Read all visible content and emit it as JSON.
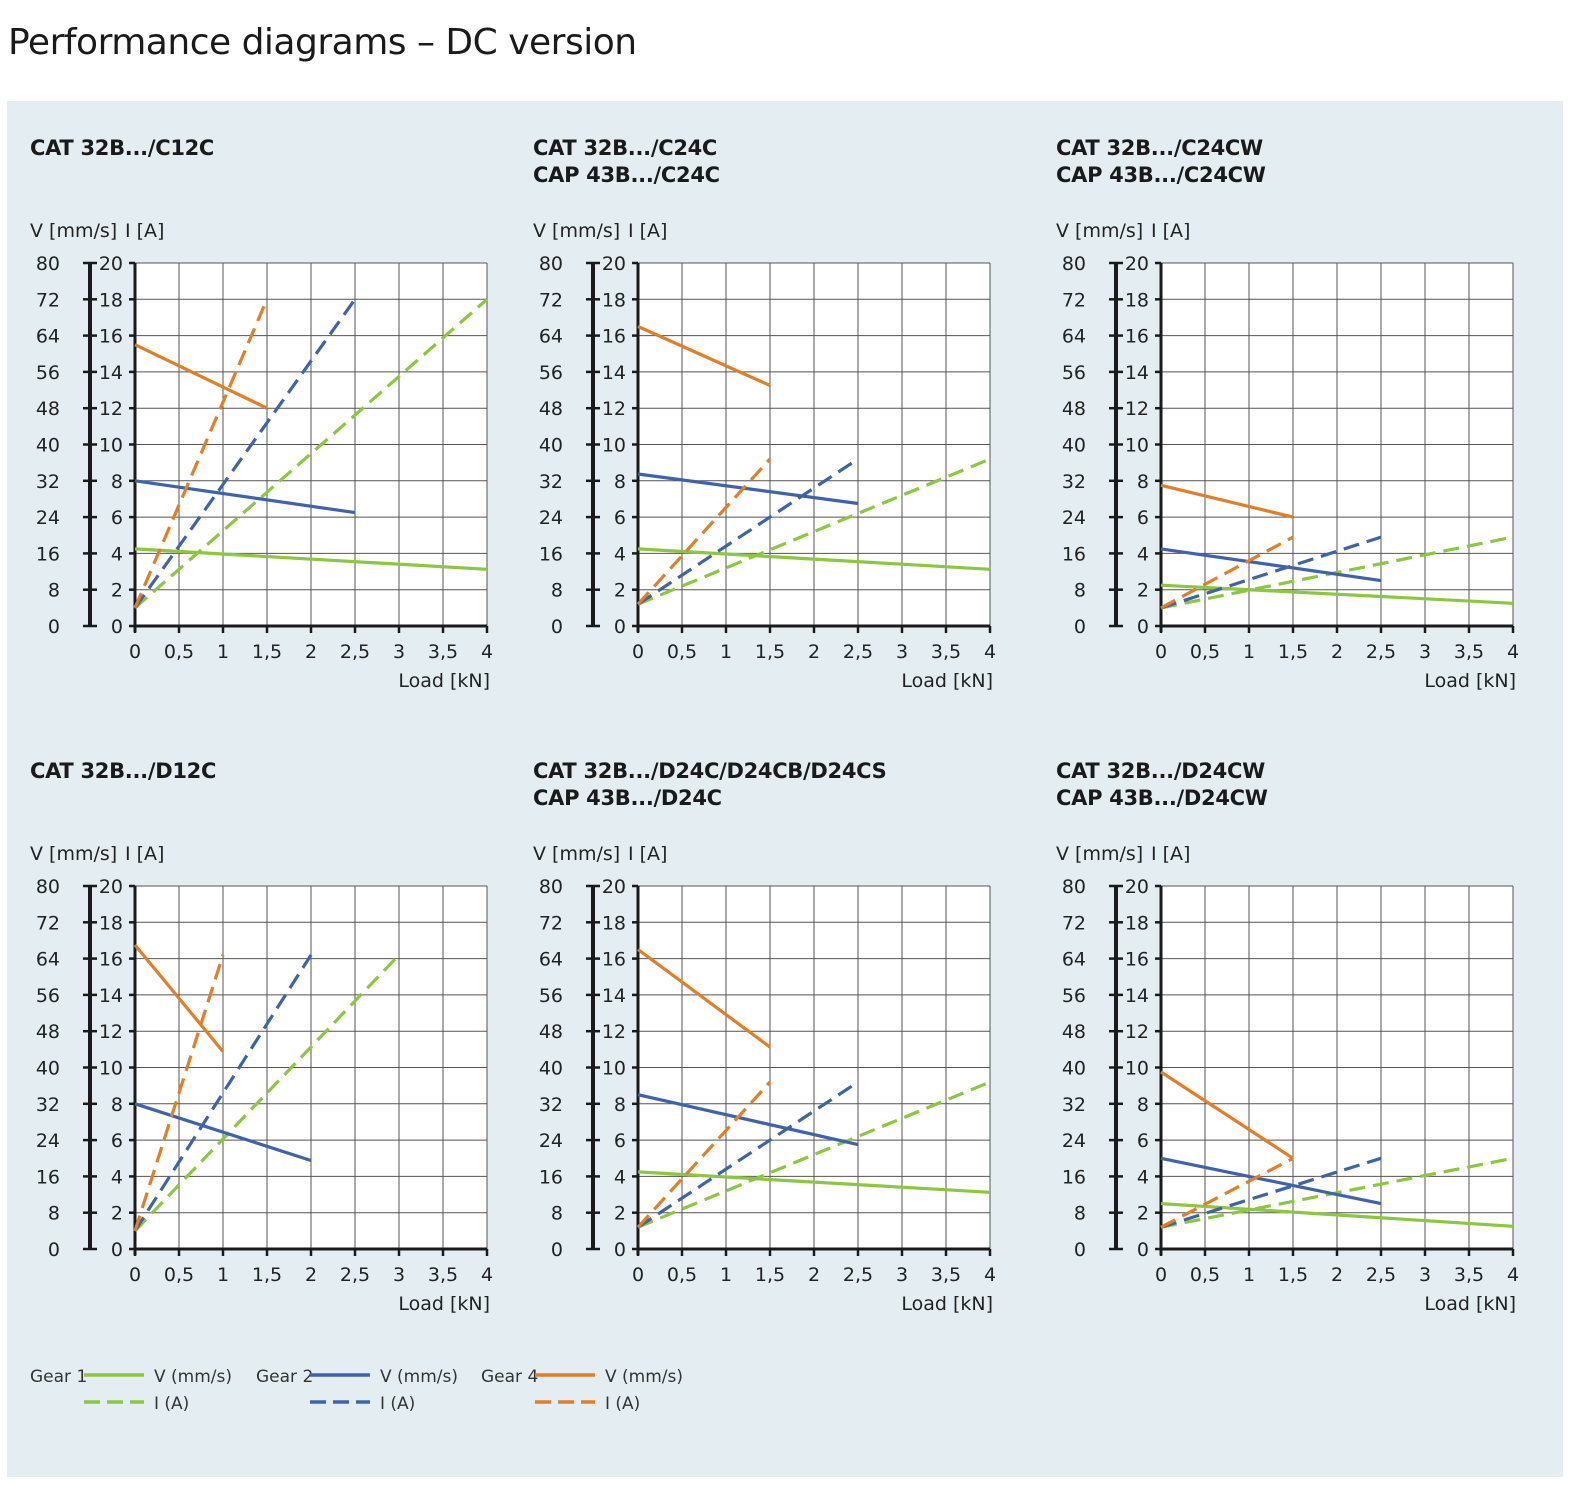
{
  "page": {
    "title": "Performance diagrams – DC version"
  },
  "colors": {
    "gear1": "#8dc63f",
    "gear2": "#3e63a8",
    "gear4": "#e07f26",
    "panel_bg": "#e4eef2",
    "grid": "#555555",
    "axis": "#1a1a1a"
  },
  "legend": {
    "items": [
      {
        "gear_label": "Gear 1",
        "color_key": "gear1",
        "v_label": "V (mm/s)",
        "i_label": "I (A)"
      },
      {
        "gear_label": "Gear 2",
        "color_key": "gear2",
        "v_label": "V (mm/s)",
        "i_label": "I (A)"
      },
      {
        "gear_label": "Gear 4",
        "color_key": "gear4",
        "v_label": "V (mm/s)",
        "i_label": "I (A)"
      }
    ]
  },
  "chart_data": [
    {
      "type": "line",
      "title": [
        "CAT 32B.../C12C"
      ],
      "y_left_label": "V [mm/s]",
      "y_right_label": "I [A]",
      "xlabel": "Load [kN]",
      "x_ticks": [
        "0",
        "0,5",
        "1",
        "1,5",
        "2",
        "2,5",
        "3",
        "3,5",
        "4"
      ],
      "y_left_ticks": [
        "0",
        "8",
        "16",
        "24",
        "32",
        "40",
        "48",
        "56",
        "64",
        "72",
        "80"
      ],
      "y_right_ticks": [
        "0",
        "2",
        "4",
        "6",
        "8",
        "10",
        "12",
        "14",
        "16",
        "18",
        "20"
      ],
      "xlim": [
        0,
        4
      ],
      "ylim_v": [
        0,
        80
      ],
      "ylim_i": [
        0,
        20
      ],
      "grid": true,
      "series": [
        {
          "gear": "Gear 1",
          "color_key": "gear1",
          "dashed": false,
          "axis": "v",
          "points": [
            [
              0,
              17
            ],
            [
              4,
              12.5
            ]
          ]
        },
        {
          "gear": "Gear 1",
          "color_key": "gear1",
          "dashed": true,
          "axis": "i",
          "points": [
            [
              0,
              1
            ],
            [
              4,
              18
            ]
          ]
        },
        {
          "gear": "Gear 2",
          "color_key": "gear2",
          "dashed": false,
          "axis": "v",
          "points": [
            [
              0,
              32
            ],
            [
              2.5,
              25
            ]
          ]
        },
        {
          "gear": "Gear 2",
          "color_key": "gear2",
          "dashed": true,
          "axis": "i",
          "points": [
            [
              0,
              1
            ],
            [
              2.5,
              18
            ]
          ]
        },
        {
          "gear": "Gear 4",
          "color_key": "gear4",
          "dashed": false,
          "axis": "v",
          "points": [
            [
              0,
              62
            ],
            [
              1.5,
              48
            ]
          ]
        },
        {
          "gear": "Gear 4",
          "color_key": "gear4",
          "dashed": true,
          "axis": "i",
          "points": [
            [
              0,
              1
            ],
            [
              1.5,
              18
            ]
          ]
        }
      ]
    },
    {
      "type": "line",
      "title": [
        "CAT 32B.../C24C",
        "CAP 43B.../C24C"
      ],
      "y_left_label": "V [mm/s]",
      "y_right_label": "I [A]",
      "xlabel": "Load [kN]",
      "x_ticks": [
        "0",
        "0,5",
        "1",
        "1,5",
        "2",
        "2,5",
        "3",
        "3,5",
        "4"
      ],
      "y_left_ticks": [
        "0",
        "8",
        "16",
        "24",
        "32",
        "40",
        "48",
        "56",
        "64",
        "72",
        "80"
      ],
      "y_right_ticks": [
        "0",
        "2",
        "4",
        "6",
        "8",
        "10",
        "12",
        "14",
        "16",
        "18",
        "20"
      ],
      "xlim": [
        0,
        4
      ],
      "ylim_v": [
        0,
        80
      ],
      "ylim_i": [
        0,
        20
      ],
      "grid": true,
      "series": [
        {
          "gear": "Gear 1",
          "color_key": "gear1",
          "dashed": false,
          "axis": "v",
          "points": [
            [
              0,
              17
            ],
            [
              4,
              12.5
            ]
          ]
        },
        {
          "gear": "Gear 1",
          "color_key": "gear1",
          "dashed": true,
          "axis": "i",
          "points": [
            [
              0,
              1.2
            ],
            [
              4,
              9.2
            ]
          ]
        },
        {
          "gear": "Gear 2",
          "color_key": "gear2",
          "dashed": false,
          "axis": "v",
          "points": [
            [
              0,
              33.5
            ],
            [
              2.5,
              27
            ]
          ]
        },
        {
          "gear": "Gear 2",
          "color_key": "gear2",
          "dashed": true,
          "axis": "i",
          "points": [
            [
              0,
              1.2
            ],
            [
              2.5,
              9.2
            ]
          ]
        },
        {
          "gear": "Gear 4",
          "color_key": "gear4",
          "dashed": false,
          "axis": "v",
          "points": [
            [
              0,
              66
            ],
            [
              1.5,
              53
            ]
          ]
        },
        {
          "gear": "Gear 4",
          "color_key": "gear4",
          "dashed": true,
          "axis": "i",
          "points": [
            [
              0,
              1.2
            ],
            [
              1.5,
              9.2
            ]
          ]
        }
      ]
    },
    {
      "type": "line",
      "title": [
        "CAT 32B.../C24CW",
        "CAP 43B.../C24CW"
      ],
      "y_left_label": "V [mm/s]",
      "y_right_label": "I [A]",
      "xlabel": "Load [kN]",
      "x_ticks": [
        "0",
        "0,5",
        "1",
        "1,5",
        "2",
        "2,5",
        "3",
        "3,5",
        "4"
      ],
      "y_left_ticks": [
        "0",
        "8",
        "16",
        "24",
        "32",
        "40",
        "48",
        "56",
        "64",
        "72",
        "80"
      ],
      "y_right_ticks": [
        "0",
        "2",
        "4",
        "6",
        "8",
        "10",
        "12",
        "14",
        "16",
        "18",
        "20"
      ],
      "xlim": [
        0,
        4
      ],
      "ylim_v": [
        0,
        80
      ],
      "ylim_i": [
        0,
        20
      ],
      "grid": true,
      "series": [
        {
          "gear": "Gear 1",
          "color_key": "gear1",
          "dashed": false,
          "axis": "v",
          "points": [
            [
              0,
              9
            ],
            [
              4,
              5
            ]
          ]
        },
        {
          "gear": "Gear 1",
          "color_key": "gear1",
          "dashed": true,
          "axis": "i",
          "points": [
            [
              0,
              1
            ],
            [
              4,
              4.9
            ]
          ]
        },
        {
          "gear": "Gear 2",
          "color_key": "gear2",
          "dashed": false,
          "axis": "v",
          "points": [
            [
              0,
              17
            ],
            [
              2.5,
              10
            ]
          ]
        },
        {
          "gear": "Gear 2",
          "color_key": "gear2",
          "dashed": true,
          "axis": "i",
          "points": [
            [
              0,
              1
            ],
            [
              2.5,
              4.9
            ]
          ]
        },
        {
          "gear": "Gear 4",
          "color_key": "gear4",
          "dashed": false,
          "axis": "v",
          "points": [
            [
              0,
              31
            ],
            [
              1.5,
              24
            ]
          ]
        },
        {
          "gear": "Gear 4",
          "color_key": "gear4",
          "dashed": true,
          "axis": "i",
          "points": [
            [
              0,
              1
            ],
            [
              1.5,
              4.9
            ]
          ]
        }
      ]
    },
    {
      "type": "line",
      "title": [
        "CAT 32B.../D12C"
      ],
      "y_left_label": "V [mm/s]",
      "y_right_label": "I [A]",
      "xlabel": "Load [kN]",
      "x_ticks": [
        "0",
        "0,5",
        "1",
        "1,5",
        "2",
        "2,5",
        "3",
        "3,5",
        "4"
      ],
      "y_left_ticks": [
        "0",
        "8",
        "16",
        "24",
        "32",
        "40",
        "48",
        "56",
        "64",
        "72",
        "80"
      ],
      "y_right_ticks": [
        "0",
        "2",
        "4",
        "6",
        "8",
        "10",
        "12",
        "14",
        "16",
        "18",
        "20"
      ],
      "xlim": [
        0,
        4
      ],
      "ylim_v": [
        0,
        80
      ],
      "ylim_i": [
        0,
        20
      ],
      "grid": true,
      "series": [
        {
          "gear": "Gear 1",
          "color_key": "gear1",
          "dashed": true,
          "axis": "i",
          "points": [
            [
              0,
              1
            ],
            [
              3,
              16.2
            ]
          ]
        },
        {
          "gear": "Gear 2",
          "color_key": "gear2",
          "dashed": false,
          "axis": "v",
          "points": [
            [
              0,
              32
            ],
            [
              2,
              19.5
            ]
          ]
        },
        {
          "gear": "Gear 2",
          "color_key": "gear2",
          "dashed": true,
          "axis": "i",
          "points": [
            [
              0,
              1
            ],
            [
              2,
              16.2
            ]
          ]
        },
        {
          "gear": "Gear 4",
          "color_key": "gear4",
          "dashed": false,
          "axis": "v",
          "points": [
            [
              0,
              67
            ],
            [
              1,
              43.5
            ]
          ]
        },
        {
          "gear": "Gear 4",
          "color_key": "gear4",
          "dashed": true,
          "axis": "i",
          "points": [
            [
              0,
              1
            ],
            [
              1,
              16.2
            ]
          ]
        }
      ]
    },
    {
      "type": "line",
      "title": [
        "CAT 32B.../D24C/D24CB/D24CS",
        "CAP 43B.../D24C"
      ],
      "y_left_label": "V [mm/s]",
      "y_right_label": "I [A]",
      "xlabel": "Load [kN]",
      "x_ticks": [
        "0",
        "0,5",
        "1",
        "1,5",
        "2",
        "2,5",
        "3",
        "3,5",
        "4"
      ],
      "y_left_ticks": [
        "0",
        "8",
        "16",
        "24",
        "32",
        "40",
        "48",
        "56",
        "64",
        "72",
        "80"
      ],
      "y_right_ticks": [
        "0",
        "2",
        "4",
        "6",
        "8",
        "10",
        "12",
        "14",
        "16",
        "18",
        "20"
      ],
      "xlim": [
        0,
        4
      ],
      "ylim_v": [
        0,
        80
      ],
      "ylim_i": [
        0,
        20
      ],
      "grid": true,
      "series": [
        {
          "gear": "Gear 1",
          "color_key": "gear1",
          "dashed": false,
          "axis": "v",
          "points": [
            [
              0,
              17
            ],
            [
              4,
              12.5
            ]
          ]
        },
        {
          "gear": "Gear 1",
          "color_key": "gear1",
          "dashed": true,
          "axis": "i",
          "points": [
            [
              0,
              1.2
            ],
            [
              4,
              9.2
            ]
          ]
        },
        {
          "gear": "Gear 2",
          "color_key": "gear2",
          "dashed": false,
          "axis": "v",
          "points": [
            [
              0,
              34
            ],
            [
              2.5,
              23
            ]
          ]
        },
        {
          "gear": "Gear 2",
          "color_key": "gear2",
          "dashed": true,
          "axis": "i",
          "points": [
            [
              0,
              1.2
            ],
            [
              2.5,
              9.2
            ]
          ]
        },
        {
          "gear": "Gear 4",
          "color_key": "gear4",
          "dashed": false,
          "axis": "v",
          "points": [
            [
              0,
              66
            ],
            [
              1.5,
              44.5
            ]
          ]
        },
        {
          "gear": "Gear 4",
          "color_key": "gear4",
          "dashed": true,
          "axis": "i",
          "points": [
            [
              0,
              1.2
            ],
            [
              1.5,
              9.2
            ]
          ]
        }
      ]
    },
    {
      "type": "line",
      "title": [
        "CAT 32B.../D24CW",
        "CAP 43B.../D24CW"
      ],
      "y_left_label": "V [mm/s]",
      "y_right_label": "I [A]",
      "xlabel": "Load [kN]",
      "x_ticks": [
        "0",
        "0,5",
        "1",
        "1,5",
        "2",
        "2,5",
        "3",
        "3,5",
        "4"
      ],
      "y_left_ticks": [
        "0",
        "8",
        "16",
        "24",
        "32",
        "40",
        "48",
        "56",
        "64",
        "72",
        "80"
      ],
      "y_right_ticks": [
        "0",
        "2",
        "4",
        "6",
        "8",
        "10",
        "12",
        "14",
        "16",
        "18",
        "20"
      ],
      "xlim": [
        0,
        4
      ],
      "ylim_v": [
        0,
        80
      ],
      "ylim_i": [
        0,
        20
      ],
      "grid": true,
      "series": [
        {
          "gear": "Gear 1",
          "color_key": "gear1",
          "dashed": false,
          "axis": "v",
          "points": [
            [
              0,
              10
            ],
            [
              4,
              5
            ]
          ]
        },
        {
          "gear": "Gear 1",
          "color_key": "gear1",
          "dashed": true,
          "axis": "i",
          "points": [
            [
              0,
              1.2
            ],
            [
              4,
              5
            ]
          ]
        },
        {
          "gear": "Gear 2",
          "color_key": "gear2",
          "dashed": false,
          "axis": "v",
          "points": [
            [
              0,
              20
            ],
            [
              2.5,
              10
            ]
          ]
        },
        {
          "gear": "Gear 2",
          "color_key": "gear2",
          "dashed": true,
          "axis": "i",
          "points": [
            [
              0,
              1.2
            ],
            [
              2.5,
              5
            ]
          ]
        },
        {
          "gear": "Gear 4",
          "color_key": "gear4",
          "dashed": false,
          "axis": "v",
          "points": [
            [
              0,
              39
            ],
            [
              1.5,
              20
            ]
          ]
        },
        {
          "gear": "Gear 4",
          "color_key": "gear4",
          "dashed": true,
          "axis": "i",
          "points": [
            [
              0,
              1.2
            ],
            [
              1.5,
              5
            ]
          ]
        }
      ]
    }
  ]
}
